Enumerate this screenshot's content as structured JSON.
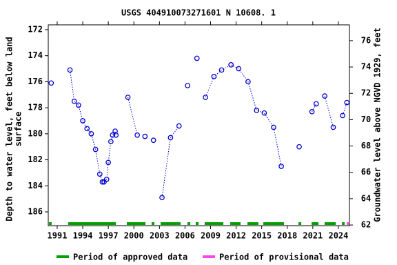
{
  "chart_data": {
    "type": "scatter",
    "title": "USGS 404910073271601 N 10608. 1",
    "y_label": [
      "Depth to water level, feet below land",
      "surface"
    ],
    "y2_label": "Groundwater level above NGVD 1929, feet",
    "xlim": [
      1989.95,
      2025.3
    ],
    "xticks": [
      1991,
      1994,
      1997,
      2000,
      2003,
      2006,
      2009,
      2012,
      2015,
      2018,
      2021,
      2024
    ],
    "ylim": [
      171.63,
      187.06
    ],
    "y_inverted": true,
    "yticks": [
      172,
      174,
      176,
      178,
      180,
      182,
      184,
      186
    ],
    "y2lim": [
      61.95,
      77.2
    ],
    "y2ticks": [
      62,
      64,
      66,
      68,
      70,
      72,
      74,
      76
    ],
    "series": [
      {
        "name": "Depth to water level",
        "color": "#0000cc",
        "x": [
          1990.3,
          null,
          1992.5,
          1993.0,
          1993.5,
          1994.0,
          1994.5,
          1995.0,
          1995.5,
          1996.0,
          1996.3,
          1996.5,
          1996.8,
          1997.0,
          1997.3,
          1997.5,
          1997.8,
          1997.9,
          null,
          1999.3,
          2000.4,
          null,
          2001.3,
          null,
          2002.3,
          null,
          2003.3,
          2004.3,
          2005.3,
          null,
          2006.3,
          null,
          2007.4,
          null,
          2008.4,
          2009.4,
          2010.3,
          2011.4,
          2012.3,
          2013.4,
          2014.4,
          2015.3,
          2016.4,
          2017.3,
          null,
          2019.4,
          null,
          2020.9,
          2021.4,
          null,
          2022.4,
          2023.4,
          null,
          2024.5,
          2025.0
        ],
        "values": [
          176.1,
          null,
          175.1,
          177.5,
          177.8,
          179.0,
          179.6,
          180.0,
          181.2,
          183.1,
          183.7,
          183.7,
          183.5,
          182.2,
          180.6,
          180.1,
          179.8,
          180.1,
          null,
          177.2,
          180.1,
          null,
          180.2,
          null,
          180.5,
          null,
          184.9,
          180.3,
          179.4,
          null,
          176.3,
          null,
          174.2,
          null,
          177.2,
          175.6,
          175.1,
          174.7,
          175.0,
          176.0,
          178.2,
          178.4,
          179.5,
          182.5,
          null,
          181.0,
          null,
          178.3,
          177.7,
          null,
          177.1,
          179.5,
          null,
          178.6,
          177.6
        ]
      }
    ],
    "periods": [
      {
        "name": "Period of approved data",
        "color": "#00a000",
        "ranges": [
          [
            1990.03,
            1990.35
          ],
          [
            1992.29,
            1997.88
          ],
          [
            1999.17,
            2001.36
          ],
          [
            2002.08,
            2002.41
          ],
          [
            2003.14,
            2005.48
          ],
          [
            2006.29,
            2006.61
          ],
          [
            2007.26,
            2007.59
          ],
          [
            2008.31,
            2010.5
          ],
          [
            2011.31,
            2012.52
          ],
          [
            2013.33,
            2014.62
          ],
          [
            2015.19,
            2017.62
          ],
          [
            2019.32,
            2019.64
          ],
          [
            2020.86,
            2021.66
          ],
          [
            2022.39,
            2023.69
          ],
          [
            2024.42,
            2024.74
          ]
        ]
      },
      {
        "name": "Period of provisional data",
        "color": "#ff44ee",
        "ranges": [
          [
            2024.98,
            2025.22
          ]
        ]
      }
    ]
  }
}
